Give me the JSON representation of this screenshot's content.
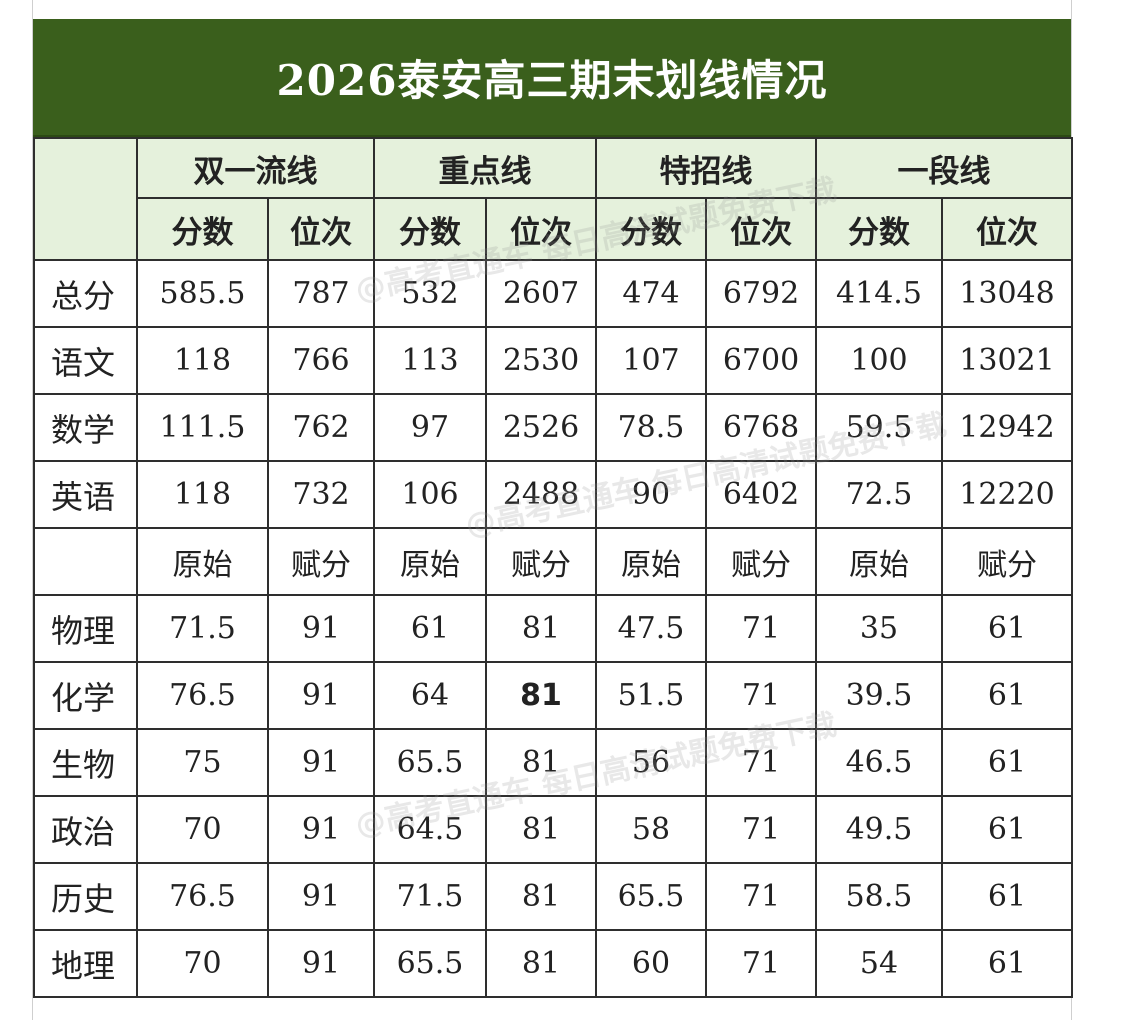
{
  "title": "2026泰安高三期末划线情况",
  "groups": [
    "双一流线",
    "重点线",
    "特招线",
    "一段线"
  ],
  "score_header": [
    "分数",
    "位次",
    "分数",
    "位次",
    "分数",
    "位次",
    "分数",
    "位次"
  ],
  "main_rows": [
    {
      "subject": "总分",
      "values": [
        "585.5",
        "787",
        "532",
        "2607",
        "474",
        "6792",
        "414.5",
        "13048"
      ]
    },
    {
      "subject": "语文",
      "values": [
        "118",
        "766",
        "113",
        "2530",
        "107",
        "6700",
        "100",
        "13021"
      ]
    },
    {
      "subject": "数学",
      "values": [
        "111.5",
        "762",
        "97",
        "2526",
        "78.5",
        "6768",
        "59.5",
        "12942"
      ]
    },
    {
      "subject": "英语",
      "values": [
        "118",
        "732",
        "106",
        "2488",
        "90",
        "6402",
        "72.5",
        "12220"
      ]
    }
  ],
  "raw_header": [
    "原始",
    "赋分",
    "原始",
    "赋分",
    "原始",
    "赋分",
    "原始",
    "赋分"
  ],
  "elective_rows": [
    {
      "subject": "物理",
      "values": [
        "71.5",
        "91",
        "61",
        "81",
        "47.5",
        "71",
        "35",
        "61"
      ]
    },
    {
      "subject": "化学",
      "values": [
        "76.5",
        "91",
        "64",
        "81",
        "51.5",
        "71",
        "39.5",
        "61"
      ]
    },
    {
      "subject": "生物",
      "values": [
        "75",
        "91",
        "65.5",
        "81",
        "56",
        "71",
        "46.5",
        "61"
      ]
    },
    {
      "subject": "政治",
      "values": [
        "70",
        "91",
        "64.5",
        "81",
        "58",
        "71",
        "49.5",
        "61"
      ]
    },
    {
      "subject": "历史",
      "values": [
        "76.5",
        "91",
        "71.5",
        "81",
        "65.5",
        "71",
        "58.5",
        "61"
      ]
    },
    {
      "subject": "地理",
      "values": [
        "70",
        "91",
        "65.5",
        "81",
        "60",
        "71",
        "54",
        "61"
      ]
    }
  ],
  "colors": {
    "title_bg": "#3a5f1c",
    "header_bg": "#e5f1dc",
    "grid": "#2e2e2e"
  }
}
